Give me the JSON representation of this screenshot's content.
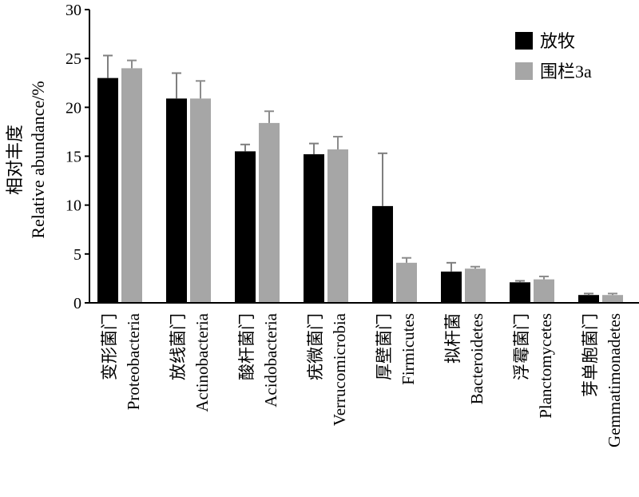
{
  "chart_data": {
    "type": "bar",
    "ylabel_cn": "相对丰度",
    "ylabel_en": "Relative abundance/%",
    "ylim": [
      0,
      30
    ],
    "yticks": [
      "0",
      "5",
      "10",
      "15",
      "20",
      "25",
      "30"
    ],
    "grid": false,
    "legend_position": "top-right",
    "categories": [
      {
        "cn": "变形菌门",
        "en": "Proteobacteria"
      },
      {
        "cn": "放线菌门",
        "en": "Actinobacteria"
      },
      {
        "cn": "酸杆菌门",
        "en": "Acidobacteria"
      },
      {
        "cn": "疣微菌门",
        "en": "Verrucomicrobia"
      },
      {
        "cn": "厚壁菌门",
        "en": "Firmicutes"
      },
      {
        "cn": "拟杆菌",
        "en": "Bacteroidetes"
      },
      {
        "cn": "浮霉菌门",
        "en": "Planctomycetes"
      },
      {
        "cn": "芽单胞菌门",
        "en": "Gemmatimonadetes"
      }
    ],
    "series": [
      {
        "name": "放牧",
        "color": "#000000",
        "values": [
          23.0,
          20.9,
          15.5,
          15.2,
          9.9,
          3.2,
          2.1,
          0.8
        ],
        "errors": [
          2.3,
          2.6,
          0.7,
          1.1,
          5.4,
          0.9,
          0.15,
          0.15
        ]
      },
      {
        "name": "围栏3a",
        "color": "#a6a6a6",
        "values": [
          24.0,
          20.9,
          18.4,
          15.7,
          4.1,
          3.5,
          2.4,
          0.8
        ],
        "errors": [
          0.8,
          1.8,
          1.2,
          1.3,
          0.5,
          0.2,
          0.3,
          0.15
        ]
      }
    ]
  }
}
